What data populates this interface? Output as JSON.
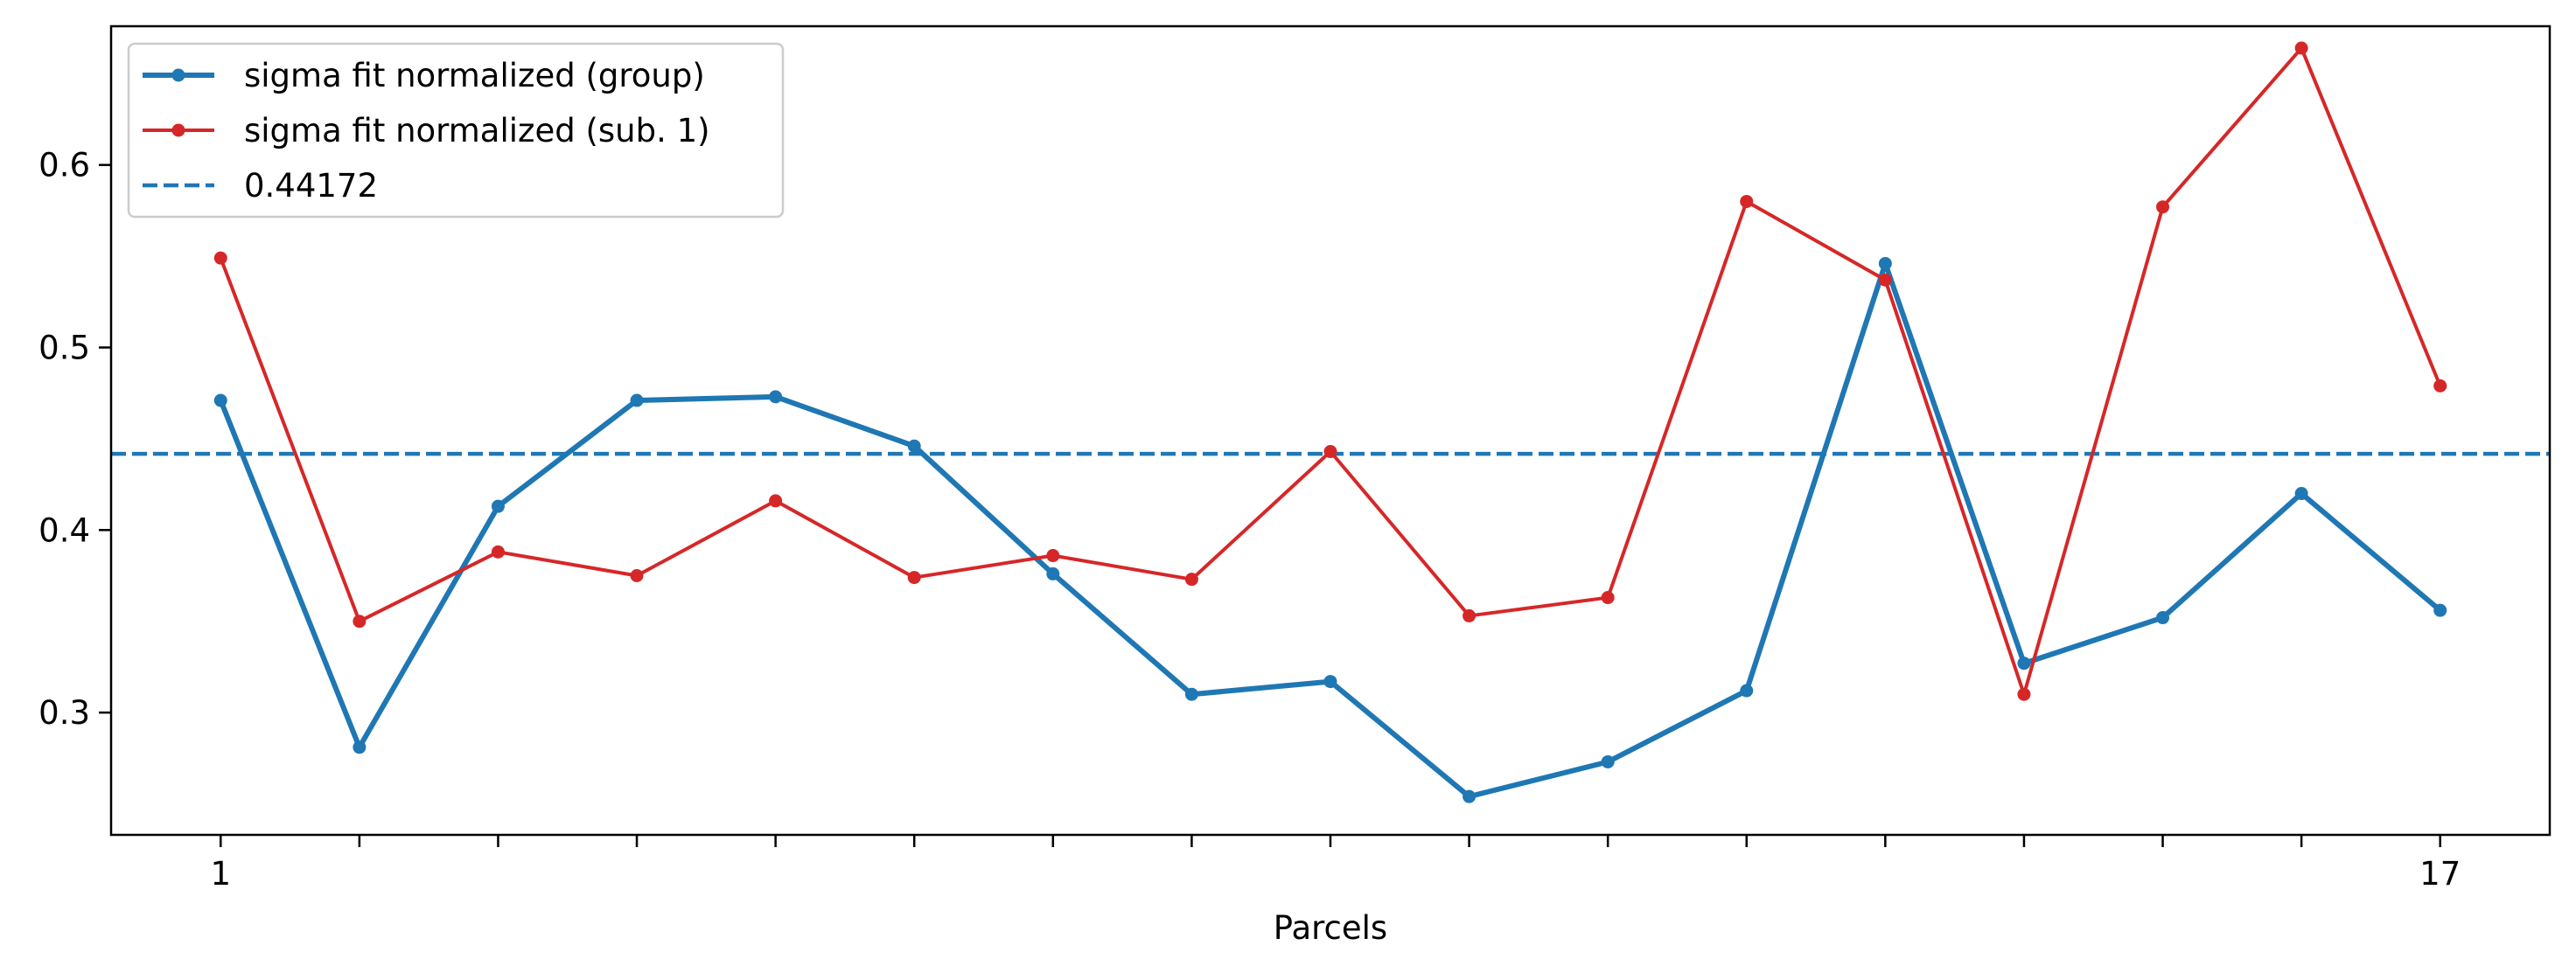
{
  "chart_data": {
    "type": "line",
    "title": "",
    "xlabel": "Parcels",
    "ylabel": "",
    "x": [
      1,
      2,
      3,
      4,
      5,
      6,
      7,
      8,
      9,
      10,
      11,
      12,
      13,
      14,
      15,
      16,
      17
    ],
    "x_tick_labels": [
      "1",
      "",
      "",
      "",
      "",
      "",
      "",
      "",
      "",
      "",
      "",
      "",
      "",
      "",
      "",
      "",
      "17"
    ],
    "xlim": [
      0.21,
      17.79
    ],
    "ylim": [
      0.233,
      0.676
    ],
    "y_ticks": [
      0.3,
      0.4,
      0.5,
      0.6
    ],
    "y_tick_labels": [
      "0.3",
      "0.4",
      "0.5",
      "0.6"
    ],
    "grid": false,
    "legend_position": "top-left",
    "series": [
      {
        "name": "sigma fit normalized (group)",
        "color": "#1f77b4",
        "style": "solid-markers-thick",
        "values": [
          0.471,
          0.281,
          0.413,
          0.471,
          0.473,
          0.446,
          0.376,
          0.31,
          0.317,
          0.254,
          0.273,
          0.312,
          0.546,
          0.327,
          0.352,
          0.42,
          0.356
        ]
      },
      {
        "name": "sigma fit normalized (sub. 1)",
        "color": "#d62728",
        "style": "solid-markers",
        "values": [
          0.549,
          0.35,
          0.388,
          0.375,
          0.416,
          0.374,
          0.386,
          0.373,
          0.443,
          0.353,
          0.363,
          0.58,
          0.537,
          0.31,
          0.577,
          0.664,
          0.479
        ]
      }
    ],
    "reference_lines": [
      {
        "name": "0.44172",
        "value": 0.44172,
        "color": "#1f77b4",
        "style": "dashed"
      }
    ]
  }
}
